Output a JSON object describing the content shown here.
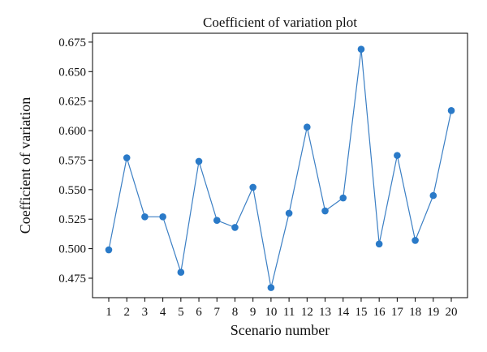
{
  "chart_data": {
    "type": "line",
    "title": "Coefficient of variation plot",
    "xlabel": "Scenario number",
    "ylabel": "Coefficient of variation",
    "x": [
      1,
      2,
      3,
      4,
      5,
      6,
      7,
      8,
      9,
      10,
      11,
      12,
      13,
      14,
      15,
      16,
      17,
      18,
      19,
      20
    ],
    "series": [
      {
        "values": [
          0.499,
          0.577,
          0.527,
          0.527,
          0.48,
          0.574,
          0.524,
          0.518,
          0.552,
          0.467,
          0.53,
          0.603,
          0.532,
          0.543,
          0.669,
          0.504,
          0.579,
          0.507,
          0.545,
          0.617
        ]
      }
    ],
    "xticks": [
      "1",
      "2",
      "3",
      "4",
      "5",
      "6",
      "7",
      "8",
      "9",
      "10",
      "11",
      "12",
      "13",
      "14",
      "15",
      "16",
      "17",
      "18",
      "19",
      "20"
    ],
    "yticks": [
      "0.475",
      "0.500",
      "0.525",
      "0.550",
      "0.575",
      "0.600",
      "0.625",
      "0.650",
      "0.675"
    ],
    "ytick_values": [
      0.475,
      0.5,
      0.525,
      0.55,
      0.575,
      0.6,
      0.625,
      0.65,
      0.675
    ],
    "xlim": [
      0.1,
      20.9
    ],
    "ylim": [
      0.4585,
      0.6825
    ],
    "grid": false,
    "line_color": "#3b7fc4",
    "marker_color": "#2a7ac8"
  }
}
